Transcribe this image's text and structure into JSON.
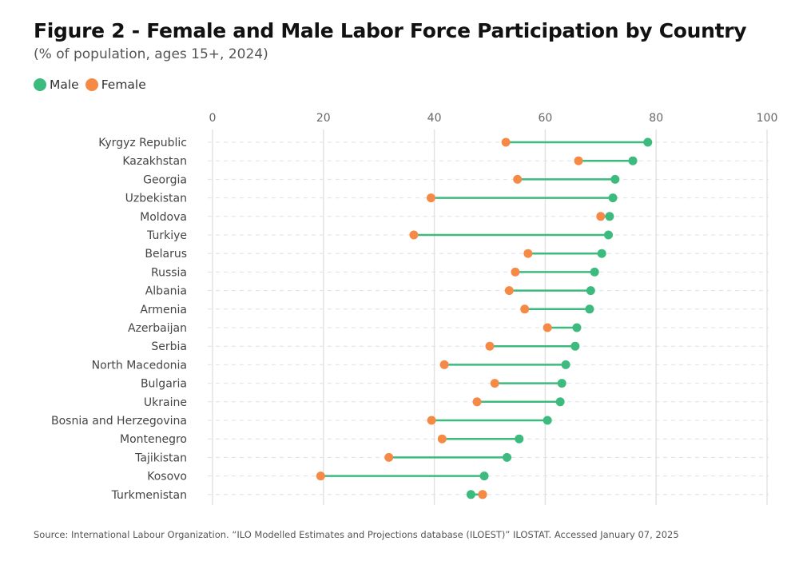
{
  "title": "Figure 2 - Female and Male Labor Force Participation by Country",
  "subtitle": "(% of population, ages 15+, 2024)",
  "legend": [
    {
      "label": "Male",
      "color": "#3dba7e"
    },
    {
      "label": "Female",
      "color": "#f58a47"
    }
  ],
  "source": "Source: International Labour Organization. “ILO Modelled Estimates and Projections database (ILOEST)” ILOSTAT. Accessed January 07, 2025",
  "chart_data": {
    "type": "dumbbell",
    "title": "Figure 2 - Female and Male Labor Force Participation by Country",
    "subtitle": "(% of population, ages 15+, 2024)",
    "xlabel": "",
    "ylabel": "",
    "xlim": [
      0,
      100
    ],
    "xticks": [
      0,
      20,
      40,
      60,
      80,
      100
    ],
    "grid": true,
    "legend_position": "top-left",
    "categories": [
      "Kyrgyz Republic",
      "Kazakhstan",
      "Georgia",
      "Uzbekistan",
      "Moldova",
      "Turkiye",
      "Belarus",
      "Russia",
      "Albania",
      "Armenia",
      "Azerbaijan",
      "Serbia",
      "North Macedonia",
      "Bulgaria",
      "Ukraine",
      "Bosnia and Herzegovina",
      "Montenegro",
      "Tajikistan",
      "Kosovo",
      "Turkmenistan"
    ],
    "series": [
      {
        "name": "Male",
        "color": "#3dba7e",
        "values": [
          78.5,
          75.8,
          72.6,
          72.2,
          71.6,
          71.4,
          70.2,
          68.9,
          68.2,
          68.0,
          65.7,
          65.4,
          63.7,
          63.0,
          62.7,
          60.4,
          55.3,
          53.1,
          49.0,
          46.6
        ]
      },
      {
        "name": "Female",
        "color": "#f58a47",
        "values": [
          52.9,
          66.0,
          55.0,
          39.4,
          70.0,
          36.3,
          56.9,
          54.6,
          53.5,
          56.3,
          60.4,
          50.0,
          41.8,
          50.9,
          47.7,
          39.5,
          41.4,
          31.8,
          19.5,
          48.7
        ]
      }
    ]
  }
}
